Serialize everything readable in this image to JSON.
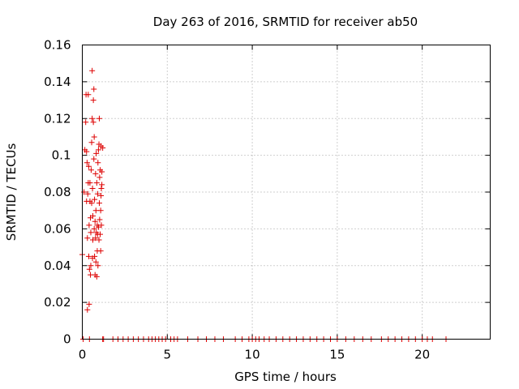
{
  "chart_data": {
    "type": "scatter",
    "title": "Day 263 of 2016, SRMTID for receiver ab50",
    "xlabel": "GPS time / hours",
    "ylabel": "SRMTID / TECUs",
    "xlim": [
      0,
      24
    ],
    "ylim": [
      0,
      0.16
    ],
    "x_ticks": [
      0,
      5,
      10,
      15,
      20
    ],
    "y_ticks": [
      0,
      0.02,
      0.04,
      0.06,
      0.08,
      0.1,
      0.12,
      0.14,
      0.16
    ],
    "x_tick_labels": [
      "0",
      "5",
      "10",
      "15",
      "20"
    ],
    "y_tick_labels": [
      "0",
      "0.02",
      "0.04",
      "0.06",
      "0.08",
      "0.1",
      "0.12",
      "0.14",
      "0.16"
    ],
    "grid": true,
    "marker": "+",
    "color": "#dd0000",
    "series": [
      {
        "name": "SRMTID",
        "points": [
          [
            0.0,
            0.046
          ],
          [
            0.05,
            0.0
          ],
          [
            0.1,
            0.08
          ],
          [
            0.15,
            0.103
          ],
          [
            0.2,
            0.118
          ],
          [
            0.22,
            0.133
          ],
          [
            0.25,
            0.102
          ],
          [
            0.25,
            0.075
          ],
          [
            0.28,
            0.096
          ],
          [
            0.3,
            0.055
          ],
          [
            0.3,
            0.016
          ],
          [
            0.32,
            0.079
          ],
          [
            0.35,
            0.085
          ],
          [
            0.35,
            0.133
          ],
          [
            0.38,
            0.094
          ],
          [
            0.38,
            0.045
          ],
          [
            0.4,
            0.019
          ],
          [
            0.4,
            0.062
          ],
          [
            0.42,
            0.038
          ],
          [
            0.42,
            0.0
          ],
          [
            0.45,
            0.085
          ],
          [
            0.45,
            0.075
          ],
          [
            0.48,
            0.035
          ],
          [
            0.48,
            0.066
          ],
          [
            0.5,
            0.058
          ],
          [
            0.5,
            0.04
          ],
          [
            0.52,
            0.092
          ],
          [
            0.55,
            0.074
          ],
          [
            0.55,
            0.107
          ],
          [
            0.58,
            0.146
          ],
          [
            0.58,
            0.12
          ],
          [
            0.6,
            0.044
          ],
          [
            0.6,
            0.082
          ],
          [
            0.62,
            0.054
          ],
          [
            0.62,
            0.067
          ],
          [
            0.65,
            0.13
          ],
          [
            0.65,
            0.118
          ],
          [
            0.68,
            0.136
          ],
          [
            0.68,
            0.098
          ],
          [
            0.7,
            0.11
          ],
          [
            0.7,
            0.06
          ],
          [
            0.72,
            0.076
          ],
          [
            0.72,
            0.045
          ],
          [
            0.75,
            0.064
          ],
          [
            0.75,
            0.035
          ],
          [
            0.78,
            0.055
          ],
          [
            0.78,
            0.09
          ],
          [
            0.8,
            0.042
          ],
          [
            0.8,
            0.07
          ],
          [
            0.82,
            0.101
          ],
          [
            0.82,
            0.058
          ],
          [
            0.85,
            0.085
          ],
          [
            0.85,
            0.034
          ],
          [
            0.88,
            0.062
          ],
          [
            0.88,
            0.048
          ],
          [
            0.9,
            0.057
          ],
          [
            0.9,
            0.079
          ],
          [
            0.92,
            0.04
          ],
          [
            0.92,
            0.096
          ],
          [
            0.95,
            0.061
          ],
          [
            0.95,
            0.103
          ],
          [
            0.98,
            0.106
          ],
          [
            0.98,
            0.054
          ],
          [
            1.0,
            0.12
          ],
          [
            1.0,
            0.074
          ],
          [
            1.02,
            0.065
          ],
          [
            1.02,
            0.088
          ],
          [
            1.05,
            0.057
          ],
          [
            1.05,
            0.092
          ],
          [
            1.08,
            0.07
          ],
          [
            1.08,
            0.048
          ],
          [
            1.1,
            0.105
          ],
          [
            1.1,
            0.078
          ],
          [
            1.12,
            0.082
          ],
          [
            1.12,
            0.062
          ],
          [
            1.15,
            0.091
          ],
          [
            1.15,
            0.084
          ],
          [
            1.2,
            0.104
          ],
          [
            1.2,
            0.0
          ],
          [
            1.25,
            0.0
          ],
          [
            1.8,
            0.0
          ],
          [
            2.1,
            0.0
          ],
          [
            2.4,
            0.0
          ],
          [
            2.7,
            0.0
          ],
          [
            3.0,
            0.0
          ],
          [
            3.3,
            0.0
          ],
          [
            3.6,
            0.0
          ],
          [
            3.9,
            0.0
          ],
          [
            4.1,
            0.0
          ],
          [
            4.3,
            0.0
          ],
          [
            4.5,
            0.0
          ],
          [
            4.7,
            0.0
          ],
          [
            4.9,
            0.0
          ],
          [
            5.2,
            0.0
          ],
          [
            5.4,
            0.0
          ],
          [
            5.6,
            0.0
          ],
          [
            6.2,
            0.0
          ],
          [
            6.8,
            0.0
          ],
          [
            7.3,
            0.0
          ],
          [
            7.8,
            0.0
          ],
          [
            8.3,
            0.0
          ],
          [
            9.0,
            0.0
          ],
          [
            9.4,
            0.0
          ],
          [
            9.8,
            0.0
          ],
          [
            10.0,
            0.0
          ],
          [
            10.2,
            0.0
          ],
          [
            10.4,
            0.0
          ],
          [
            10.7,
            0.0
          ],
          [
            11.0,
            0.0
          ],
          [
            11.4,
            0.0
          ],
          [
            11.8,
            0.0
          ],
          [
            12.2,
            0.0
          ],
          [
            12.6,
            0.0
          ],
          [
            13.0,
            0.0
          ],
          [
            13.4,
            0.0
          ],
          [
            13.8,
            0.0
          ],
          [
            14.2,
            0.0
          ],
          [
            14.6,
            0.0
          ],
          [
            15.0,
            0.0
          ],
          [
            15.5,
            0.0
          ],
          [
            16.0,
            0.0
          ],
          [
            16.5,
            0.0
          ],
          [
            17.0,
            0.0
          ],
          [
            17.6,
            0.0
          ],
          [
            18.0,
            0.0
          ],
          [
            18.4,
            0.0
          ],
          [
            18.8,
            0.0
          ],
          [
            19.2,
            0.0
          ],
          [
            19.6,
            0.0
          ],
          [
            20.0,
            0.0
          ],
          [
            20.3,
            0.0
          ],
          [
            20.6,
            0.0
          ],
          [
            21.4,
            0.0
          ]
        ]
      }
    ]
  }
}
